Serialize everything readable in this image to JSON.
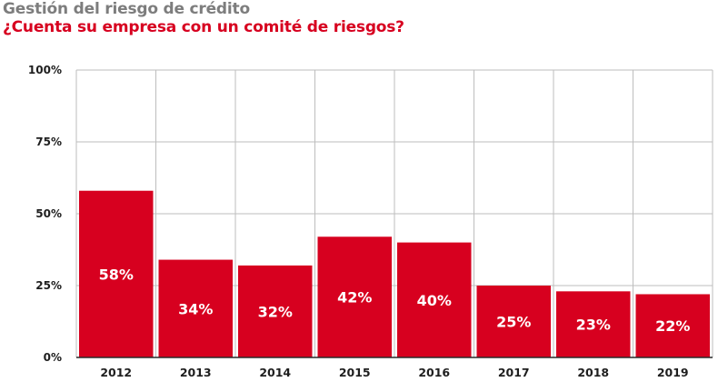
{
  "title": "Gestión del riesgo de crédito",
  "subtitle": "¿Cuenta su empresa con un comité de riesgos?",
  "colors": {
    "bar": "#d7001f",
    "title": "#7d7d7d",
    "subtitle": "#d7001f",
    "grid": "#bdbdbd",
    "axis": "#2a2a2a",
    "bar_label": "#ffffff"
  },
  "chart_data": {
    "type": "bar",
    "title": "Gestión del riesgo de crédito",
    "subtitle": "¿Cuenta su empresa con un comité de riesgos?",
    "xlabel": "",
    "ylabel": "",
    "categories": [
      "2012",
      "2013",
      "2014",
      "2015",
      "2016",
      "2017",
      "2018",
      "2019"
    ],
    "values": [
      58,
      34,
      32,
      42,
      40,
      25,
      23,
      22
    ],
    "value_labels": [
      "58%",
      "34%",
      "32%",
      "42%",
      "40%",
      "25%",
      "23%",
      "22%"
    ],
    "ylim": [
      0,
      100
    ],
    "yticks": [
      0,
      25,
      50,
      75,
      100
    ],
    "ytick_labels": [
      "0%",
      "25%",
      "50%",
      "75%",
      "100%"
    ],
    "grid": true,
    "legend": "none"
  }
}
